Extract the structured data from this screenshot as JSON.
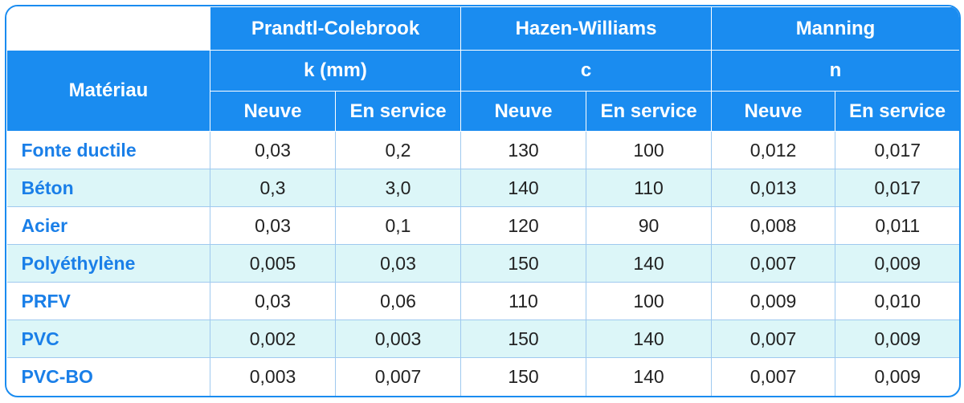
{
  "header": {
    "material_label": "Matériau",
    "groups": [
      "Prandtl-Colebrook",
      "Hazen-Williams",
      "Manning"
    ],
    "units": [
      "k (mm)",
      "c",
      "n"
    ],
    "subcols": [
      "Neuve",
      "En service",
      "Neuve",
      "En service",
      "Neuve",
      "En service"
    ]
  },
  "rows": [
    {
      "material": "Fonte ductile",
      "values": [
        "0,03",
        "0,2",
        "130",
        "100",
        "0,012",
        "0,017"
      ]
    },
    {
      "material": "Béton",
      "values": [
        "0,3",
        "3,0",
        "140",
        "110",
        "0,013",
        "0,017"
      ]
    },
    {
      "material": "Acier",
      "values": [
        "0,03",
        "0,1",
        "120",
        "90",
        "0,008",
        "0,011"
      ]
    },
    {
      "material": "Polyéthylène",
      "values": [
        "0,005",
        "0,03",
        "150",
        "140",
        "0,007",
        "0,009"
      ]
    },
    {
      "material": "PRFV",
      "values": [
        "0,03",
        "0,06",
        "110",
        "100",
        "0,009",
        "0,010"
      ]
    },
    {
      "material": "PVC",
      "values": [
        "0,002",
        "0,003",
        "150",
        "140",
        "0,007",
        "0,009"
      ]
    },
    {
      "material": "PVC-BO",
      "values": [
        "0,003",
        "0,007",
        "150",
        "140",
        "0,007",
        "0,009"
      ]
    }
  ],
  "colors": {
    "header_bg": "#1a8cf0",
    "material_text": "#1a7fe8",
    "alt_row_bg": "#dcf6f8"
  }
}
